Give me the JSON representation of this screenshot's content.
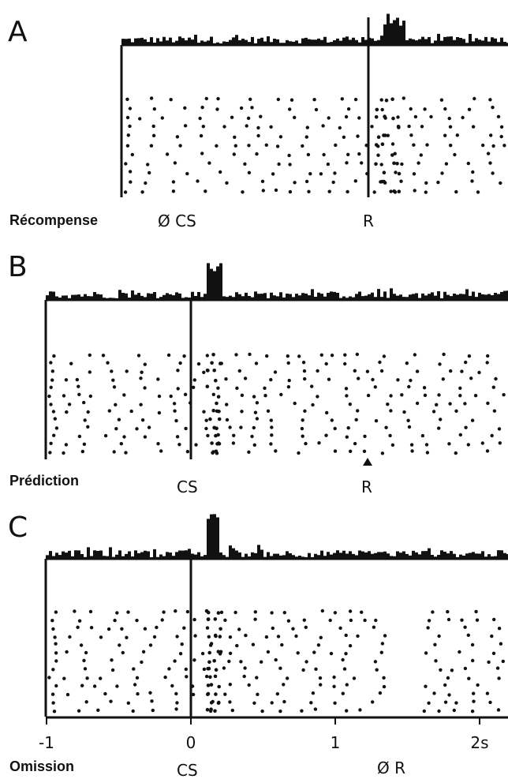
{
  "panels": [
    {
      "letter": "A",
      "label": "Récompense",
      "events": [
        {
          "text": "Ø CS",
          "t": 0
        },
        {
          "text": "R",
          "t": 1.2,
          "line": true
        }
      ]
    },
    {
      "letter": "B",
      "label": "Prédiction",
      "events": [
        {
          "text": "CS",
          "t": 0,
          "line": true
        },
        {
          "text": "R",
          "t": 1.2,
          "marker": true
        }
      ]
    },
    {
      "letter": "C",
      "label": "Omission",
      "events": [
        {
          "text": "CS",
          "t": 0,
          "line": true
        },
        {
          "text": "Ø R",
          "t": 1.2
        }
      ]
    }
  ],
  "xaxis": {
    "ticks": [
      {
        "value": -1,
        "label": "-1"
      },
      {
        "value": 0,
        "label": "0"
      },
      {
        "value": 1,
        "label": "1"
      },
      {
        "value": 2,
        "label": "2s"
      }
    ]
  }
}
